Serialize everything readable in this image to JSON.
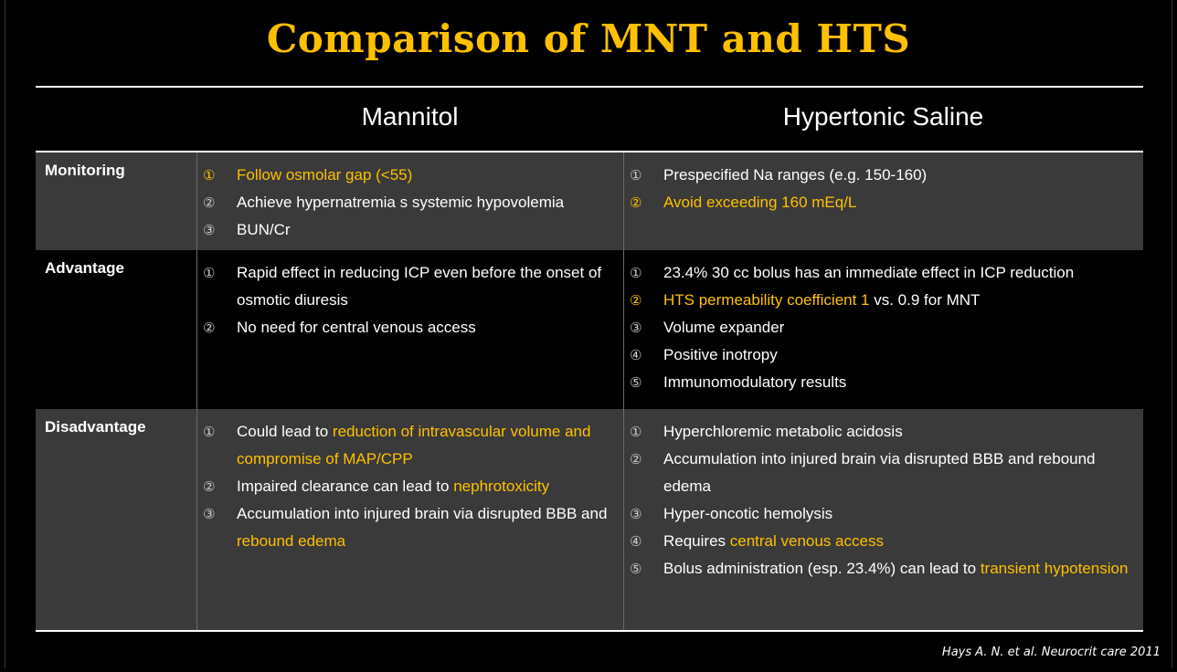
{
  "title": "Comparison of MNT and HTS",
  "columns": {
    "a": "Mannitol",
    "b": "Hypertonic Saline"
  },
  "rows": [
    {
      "label": "Monitoring",
      "a": [
        {
          "n": "①",
          "parts": [
            {
              "t": "Follow osmolar gap (<55)",
              "hl": true
            }
          ],
          "allhl": true
        },
        {
          "n": "②",
          "parts": [
            {
              "t": "Achieve hypernatremia s systemic hypovolemia"
            }
          ]
        },
        {
          "n": "③",
          "parts": [
            {
              "t": "BUN/Cr"
            }
          ]
        }
      ],
      "b": [
        {
          "n": "①",
          "parts": [
            {
              "t": "Prespecified Na ranges (e.g. 150-160)"
            }
          ]
        },
        {
          "n": "②",
          "parts": [
            {
              "t": "Avoid exceeding 160 mEq/L",
              "hl": true
            }
          ],
          "allhl": true
        }
      ]
    },
    {
      "label": "Advantage",
      "a": [
        {
          "n": "①",
          "parts": [
            {
              "t": "Rapid effect in reducing ICP even before the onset of osmotic diuresis"
            }
          ]
        },
        {
          "n": "②",
          "parts": [
            {
              "t": "No need for central venous access"
            }
          ]
        }
      ],
      "b": [
        {
          "n": "①",
          "parts": [
            {
              "t": "23.4% 30 cc bolus has an immediate effect in ICP reduction"
            }
          ]
        },
        {
          "n": "②",
          "parts": [
            {
              "t": "HTS permeability coefficient 1",
              "hl": true
            },
            {
              "t": " vs. 0.9 for MNT"
            }
          ],
          "allhl": true
        },
        {
          "n": "③",
          "parts": [
            {
              "t": "Volume expander"
            }
          ]
        },
        {
          "n": "④",
          "parts": [
            {
              "t": "Positive inotropy"
            }
          ]
        },
        {
          "n": "⑤",
          "parts": [
            {
              "t": "Immunomodulatory results"
            }
          ]
        }
      ]
    },
    {
      "label": "Disadvantage",
      "a": [
        {
          "n": "①",
          "parts": [
            {
              "t": "Could lead to "
            },
            {
              "t": "reduction of intravascular volume and compromise of MAP/CPP",
              "hl": true
            }
          ]
        },
        {
          "n": "②",
          "parts": [
            {
              "t": "Impaired clearance can lead to "
            },
            {
              "t": "nephrotoxicity",
              "hl": true
            }
          ]
        },
        {
          "n": "③",
          "parts": [
            {
              "t": "Accumulation into injured brain via disrupted BBB and "
            },
            {
              "t": "rebound edema",
              "hl": true
            }
          ]
        }
      ],
      "b": [
        {
          "n": "①",
          "parts": [
            {
              "t": "Hyperchloremic metabolic acidosis"
            }
          ]
        },
        {
          "n": "②",
          "parts": [
            {
              "t": "Accumulation into injured brain via disrupted BBB and rebound edema"
            }
          ]
        },
        {
          "n": "③",
          "parts": [
            {
              "t": "Hyper-oncotic hemolysis"
            }
          ]
        },
        {
          "n": "④",
          "parts": [
            {
              "t": "Requires "
            },
            {
              "t": "central venous access",
              "hl": true
            }
          ]
        },
        {
          "n": "⑤",
          "parts": [
            {
              "t": "Bolus administration (esp. 23.4%) can lead to "
            },
            {
              "t": "transient hypotension",
              "hl": true
            }
          ]
        }
      ]
    }
  ],
  "citation": "Hays A. N. et al. Neurocrit care 2011",
  "colors": {
    "accent": "#ffc000",
    "row_dark": "#3a3a3a",
    "background": "#000000"
  }
}
